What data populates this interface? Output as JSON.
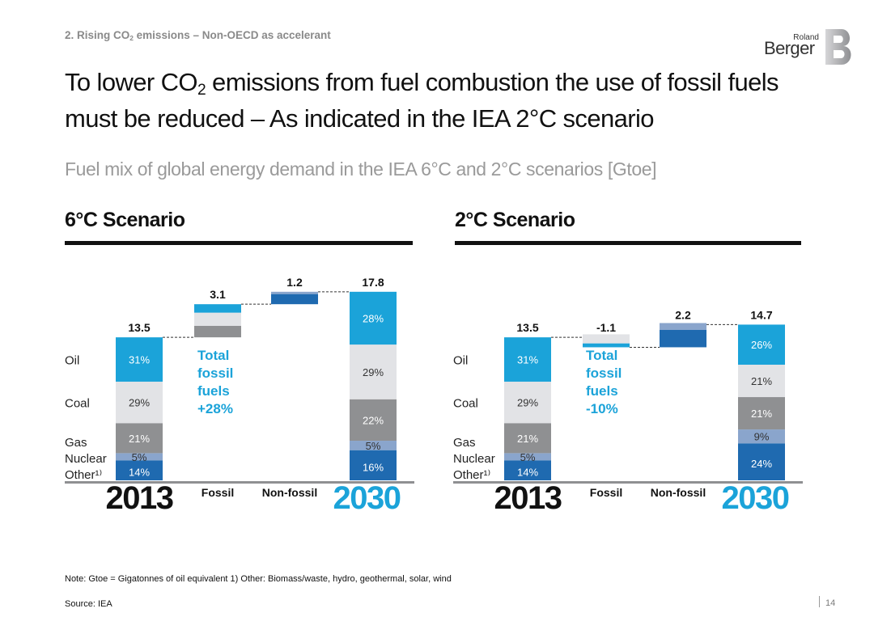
{
  "header": {
    "section_prefix": "2. Rising CO",
    "section_sub": "2",
    "section_suffix": " emissions – Non-OECD as accelerant",
    "title_part1": "To lower CO",
    "title_sub": "2",
    "title_part2": " emissions from fuel combustion the use of fossil fuels must be reduced – As indicated in the IEA 2°C scenario",
    "subtitle": "Fuel mix of global energy demand in the IEA 6°C and 2°C scenarios [Gtoe]"
  },
  "logo": {
    "line1": "Roland",
    "line2": "Berger"
  },
  "colors": {
    "oil": "#1ba3d9",
    "coal": "#e2e3e6",
    "gas": "#8f9092",
    "nuclear": "#8aa5cc",
    "other": "#1f6ab0",
    "accent": "#1ba3d9",
    "connector": "#333333"
  },
  "chart_data": [
    {
      "type": "waterfall",
      "title": "6°C Scenario",
      "unit": "Gtoe",
      "categories": [
        "2013",
        "Fossil",
        "Non-fossil",
        "2030"
      ],
      "totals": [
        "13.5",
        "3.1",
        "1.2",
        "17.8"
      ],
      "stack_order": [
        "Other",
        "Nuclear",
        "Gas",
        "Coal",
        "Oil"
      ],
      "row_labels": [
        "Oil",
        "Coal",
        "Gas",
        "Nuclear",
        "Other¹⁾"
      ],
      "start": {
        "year": "2013",
        "total": 13.5,
        "shares": [
          14,
          5,
          21,
          29,
          31
        ],
        "labels": [
          "14%",
          "5%",
          "21%",
          "29%",
          "31%"
        ]
      },
      "end": {
        "year": "2030",
        "total": 17.8,
        "shares": [
          16,
          5,
          22,
          29,
          28
        ],
        "labels": [
          "16%",
          "5%",
          "22%",
          "29%",
          "28%"
        ]
      },
      "annotation": "Total fossil fuels +28%"
    },
    {
      "type": "waterfall",
      "title": "2°C Scenario",
      "unit": "Gtoe",
      "categories": [
        "2013",
        "Fossil",
        "Non-fossil",
        "2030"
      ],
      "totals": [
        "13.5",
        "-1.1",
        "2.2",
        "14.7"
      ],
      "stack_order": [
        "Other",
        "Nuclear",
        "Gas",
        "Coal",
        "Oil"
      ],
      "row_labels": [
        "Oil",
        "Coal",
        "Gas",
        "Nuclear",
        "Other¹⁾"
      ],
      "start": {
        "year": "2013",
        "total": 13.5,
        "shares": [
          14,
          5,
          21,
          29,
          31
        ],
        "labels": [
          "14%",
          "5%",
          "21%",
          "29%",
          "31%"
        ]
      },
      "end": {
        "year": "2030",
        "total": 14.7,
        "shares": [
          24,
          9,
          21,
          21,
          26
        ],
        "labels": [
          "24%",
          "9%",
          "21%",
          "21%",
          "26%"
        ]
      },
      "annotation": "Total fossil fuels -10%"
    }
  ],
  "footer": {
    "note": "Note: Gtoe = Gigatonnes of oil equivalent  1) Other: Biomass/waste, hydro, geothermal, solar, wind",
    "source": "Source: IEA",
    "page": "14"
  }
}
